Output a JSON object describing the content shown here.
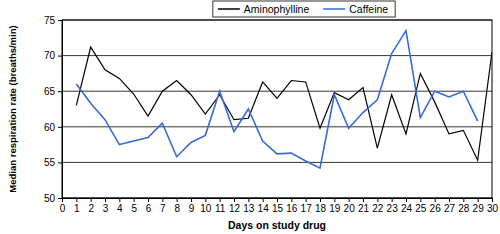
{
  "chart_data": {
    "type": "line",
    "x_label": "Days on study drug",
    "y_label": "Median respiration rate (breaths/min)",
    "x": [
      1,
      2,
      3,
      4,
      5,
      6,
      7,
      8,
      9,
      10,
      11,
      12,
      13,
      14,
      15,
      16,
      17,
      18,
      19,
      20,
      21,
      22,
      23,
      24,
      25,
      26,
      27,
      28,
      29,
      30
    ],
    "series": [
      {
        "name": "Aminophylline",
        "color": "#000000",
        "values": [
          63,
          71.2,
          68,
          66.8,
          64.6,
          61.5,
          65,
          66.5,
          64.5,
          61.8,
          64.5,
          61,
          61.2,
          66.3,
          64,
          66.5,
          66.3,
          59.8,
          64.8,
          63.8,
          65.5,
          57,
          64.5,
          59,
          67.5,
          63.5,
          59,
          59.5,
          55.3,
          70.5
        ]
      },
      {
        "name": "Caffeine",
        "color": "#3a6ad4",
        "values": [
          66,
          63.3,
          61,
          57.5,
          58,
          58.5,
          60.5,
          55.8,
          57.8,
          58.8,
          65,
          59.3,
          62.5,
          58,
          56.2,
          56.3,
          55.2,
          54.2,
          64.5,
          59.8,
          62,
          63.8,
          70.3,
          73.5,
          61.3,
          65,
          64.2,
          65,
          60.8,
          null
        ]
      }
    ],
    "xlim": [
      0,
      30
    ],
    "xticks": [
      0,
      1,
      2,
      3,
      4,
      5,
      6,
      7,
      8,
      9,
      10,
      11,
      12,
      13,
      14,
      15,
      16,
      17,
      18,
      19,
      20,
      21,
      22,
      23,
      24,
      25,
      26,
      27,
      28,
      29,
      30
    ],
    "ylim": [
      50,
      75
    ],
    "yticks": [
      50,
      55,
      60,
      65,
      70,
      75
    ],
    "grid": true,
    "legend": "top"
  }
}
